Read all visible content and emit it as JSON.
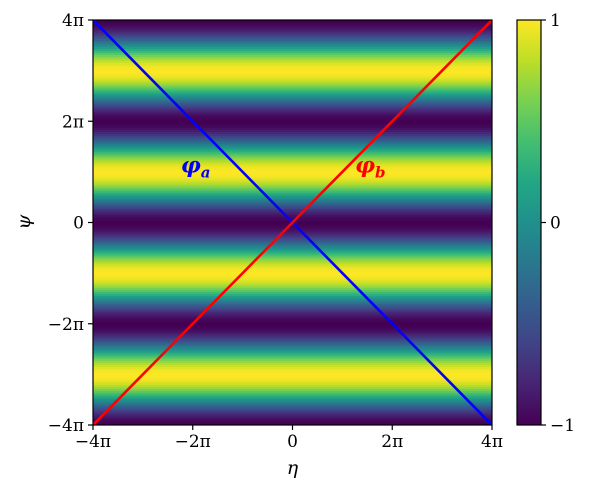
{
  "chart_data": {
    "type": "heatmap",
    "title": "",
    "xlabel": "η",
    "ylabel": "ψ",
    "xlim": [
      -12.566,
      12.566
    ],
    "ylim": [
      -12.566,
      12.566
    ],
    "x_ticks": [
      {
        "value": -12.566,
        "label": "−4π"
      },
      {
        "value": -6.283,
        "label": "−2π"
      },
      {
        "value": 0,
        "label": "0"
      },
      {
        "value": 6.283,
        "label": "2π"
      },
      {
        "value": 12.566,
        "label": "4π"
      }
    ],
    "y_ticks": [
      {
        "value": -12.566,
        "label": "−4π"
      },
      {
        "value": -6.283,
        "label": "−2π"
      },
      {
        "value": 0,
        "label": "0"
      },
      {
        "value": 6.283,
        "label": "2π"
      },
      {
        "value": 12.566,
        "label": "4π"
      }
    ],
    "field": "cos(ψ + π)",
    "colormap": "viridis",
    "colorbar": {
      "range": [
        -1,
        1
      ],
      "ticks": [
        {
          "value": 1,
          "label": "1"
        },
        {
          "value": 0,
          "label": "0"
        },
        {
          "value": -1,
          "label": "−1"
        }
      ]
    },
    "grid": false,
    "series": [
      {
        "name": "φ_a",
        "color": "#0000ff",
        "x": [
          -12.566,
          12.566
        ],
        "y": [
          12.566,
          -12.566
        ]
      },
      {
        "name": "φ_b",
        "color": "#ff0000",
        "x": [
          -12.566,
          12.566
        ],
        "y": [
          -12.566,
          12.566
        ]
      }
    ],
    "annotations": [
      {
        "base": "φ",
        "sub": "a",
        "color": "#0000ff",
        "x": -6.1,
        "y": 3.6
      },
      {
        "base": "φ",
        "sub": "b",
        "color": "#ff0000",
        "x": 4.9,
        "y": 3.6
      }
    ]
  }
}
